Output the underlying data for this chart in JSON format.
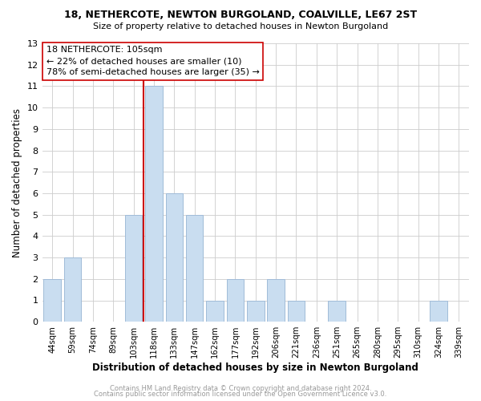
{
  "title1": "18, NETHERCOTE, NEWTON BURGOLAND, COALVILLE, LE67 2ST",
  "title2": "Size of property relative to detached houses in Newton Burgoland",
  "xlabel": "Distribution of detached houses by size in Newton Burgoland",
  "ylabel": "Number of detached properties",
  "bin_labels": [
    "44sqm",
    "59sqm",
    "74sqm",
    "89sqm",
    "103sqm",
    "118sqm",
    "133sqm",
    "147sqm",
    "162sqm",
    "177sqm",
    "192sqm",
    "206sqm",
    "221sqm",
    "236sqm",
    "251sqm",
    "265sqm",
    "280sqm",
    "295sqm",
    "310sqm",
    "324sqm",
    "339sqm"
  ],
  "bar_heights": [
    2,
    3,
    0,
    0,
    5,
    11,
    6,
    5,
    1,
    2,
    1,
    2,
    1,
    0,
    1,
    0,
    0,
    0,
    0,
    1,
    0
  ],
  "bar_color": "#c9ddf0",
  "bar_edge_color": "#a0bcd8",
  "marker_line_color": "#cc0000",
  "annotation_line1": "18 NETHERCOTE: 105sqm",
  "annotation_line2": "← 22% of detached houses are smaller (10)",
  "annotation_line3": "78% of semi-detached houses are larger (35) →",
  "ylim": [
    0,
    13
  ],
  "yticks": [
    0,
    1,
    2,
    3,
    4,
    5,
    6,
    7,
    8,
    9,
    10,
    11,
    12,
    13
  ],
  "footer1": "Contains HM Land Registry data © Crown copyright and database right 2024.",
  "footer2": "Contains public sector information licensed under the Open Government Licence v3.0.",
  "background_color": "#ffffff",
  "grid_color": "#cccccc"
}
